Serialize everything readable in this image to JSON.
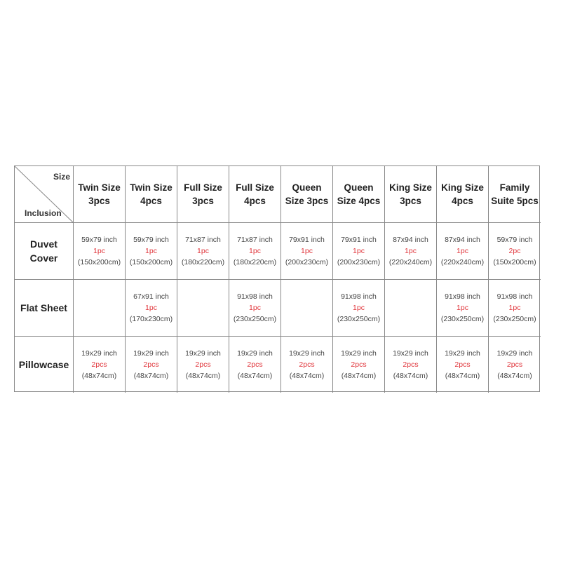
{
  "corner": {
    "top_label": "Size",
    "bottom_label": "Inclusion"
  },
  "columns": [
    [
      "Twin Size",
      "3pcs"
    ],
    [
      "Twin Size",
      "4pcs"
    ],
    [
      "Full Size",
      "3pcs"
    ],
    [
      "Full Size",
      "4pcs"
    ],
    [
      "Queen",
      "Size 3pcs"
    ],
    [
      "Queen",
      "Size 4pcs"
    ],
    [
      "King Size",
      "3pcs"
    ],
    [
      "King Size",
      "4pcs"
    ],
    [
      "Family",
      "Suite 5pcs"
    ]
  ],
  "rows": [
    {
      "label": [
        "Duvet",
        "Cover"
      ],
      "cells": [
        [
          "59x79 inch",
          "1pc",
          "(150x200cm)"
        ],
        [
          "59x79 inch",
          "1pc",
          "(150x200cm)"
        ],
        [
          "71x87 inch",
          "1pc",
          "(180x220cm)"
        ],
        [
          "71x87 inch",
          "1pc",
          "(180x220cm)"
        ],
        [
          "79x91 inch",
          "1pc",
          "(200x230cm)"
        ],
        [
          "79x91 inch",
          "1pc",
          "(200x230cm)"
        ],
        [
          "87x94 inch",
          "1pc",
          "(220x240cm)"
        ],
        [
          "87x94 inch",
          "1pc",
          "(220x240cm)"
        ],
        [
          "59x79 inch",
          "2pc",
          "(150x200cm)"
        ]
      ]
    },
    {
      "label": [
        "Flat Sheet"
      ],
      "cells": [
        [],
        [
          "67x91 inch",
          "1pc",
          "(170x230cm)"
        ],
        [],
        [
          "91x98 inch",
          "1pc",
          "(230x250cm)"
        ],
        [],
        [
          "91x98 inch",
          "1pc",
          "(230x250cm)"
        ],
        [],
        [
          "91x98 inch",
          "1pc",
          "(230x250cm)"
        ],
        [
          "91x98 inch",
          "1pc",
          "(230x250cm)"
        ]
      ]
    },
    {
      "label": [
        "Pillowcase"
      ],
      "cells": [
        [
          "19x29 inch",
          "2pcs",
          "(48x74cm)"
        ],
        [
          "19x29 inch",
          "2pcs",
          "(48x74cm)"
        ],
        [
          "19x29 inch",
          "2pcs",
          "(48x74cm)"
        ],
        [
          "19x29 inch",
          "2pcs",
          "(48x74cm)"
        ],
        [
          "19x29 inch",
          "2pcs",
          "(48x74cm)"
        ],
        [
          "19x29 inch",
          "2pcs",
          "(48x74cm)"
        ],
        [
          "19x29 inch",
          "2pcs",
          "(48x74cm)"
        ],
        [
          "19x29 inch",
          "2pcs",
          "(48x74cm)"
        ],
        [
          "19x29 inch",
          "2pcs",
          "(48x74cm)"
        ]
      ]
    }
  ],
  "colors": {
    "quantity": "#e0343a",
    "border": "#888888"
  }
}
